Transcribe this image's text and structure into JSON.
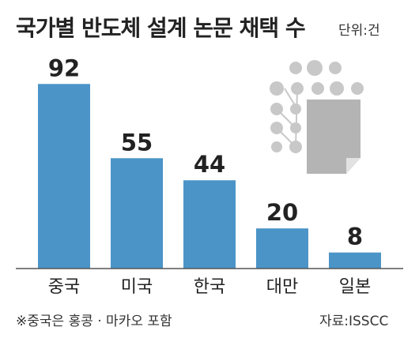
{
  "title": "국가별 반도체 설계 논문 채택 수",
  "unit": "단위:건",
  "footnote": "※중국은 홍콩 · 마카오 포함",
  "source": "자료:ISSCC",
  "colors": {
    "bar": "#4b94c8",
    "text": "#222222",
    "illustration": "#c8c8c8"
  },
  "illustration": "chip-with-document-icon",
  "chart_data": {
    "type": "bar",
    "title": "국가별 반도체 설계 논문 채택 수",
    "categories": [
      "중국",
      "미국",
      "한국",
      "대만",
      "일본"
    ],
    "values": [
      92,
      55,
      44,
      20,
      8
    ],
    "ylim": [
      0,
      100
    ],
    "grid": false,
    "xlabel": "",
    "ylabel": ""
  }
}
